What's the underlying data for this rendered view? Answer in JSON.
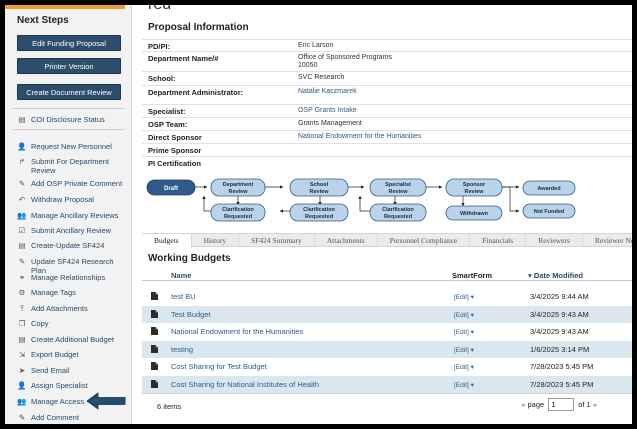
{
  "sidebar": {
    "title": "Next Steps",
    "buttons": [
      {
        "label": "Edit Funding Proposal"
      },
      {
        "label": "Printer Version"
      },
      {
        "label": "Create Document Review"
      }
    ],
    "coi": {
      "label": "COI Disclosure Status",
      "icon": "document-icon"
    },
    "items": [
      {
        "label": "Request New Personnel",
        "icon": "user-plus-icon"
      },
      {
        "label": "Submit For Department Review",
        "icon": "share-arrow-icon"
      },
      {
        "label": "Add OSP Private Comment",
        "icon": "comment-icon"
      },
      {
        "label": "Withdraw Proposal",
        "icon": "back-arrow-icon"
      },
      {
        "label": "Manage Ancillary Reviews",
        "icon": "group-icon"
      },
      {
        "label": "Submit Ancillary Review",
        "icon": "checkbox-icon"
      },
      {
        "label": "Create-Update SF424",
        "icon": "form-icon"
      },
      {
        "label": "Update SF424 Research Plan",
        "icon": "edit-icon"
      },
      {
        "label": "Manage Relationships",
        "icon": "link-icon"
      },
      {
        "label": "Manage Tags",
        "icon": "gear-icon"
      },
      {
        "label": "Add Attachments",
        "icon": "upload-icon"
      },
      {
        "label": "Copy",
        "icon": "copy-icon"
      },
      {
        "label": "Create Additional Budget",
        "icon": "form-icon"
      },
      {
        "label": "Export Budget",
        "icon": "export-icon"
      },
      {
        "label": "Send Email",
        "icon": "send-icon"
      },
      {
        "label": "Assign Specialist",
        "icon": "user-plus-icon"
      },
      {
        "label": "Manage Access",
        "icon": "group-icon"
      },
      {
        "label": "Add Comment",
        "icon": "comment-icon"
      }
    ]
  },
  "header": {
    "cut_title": "red"
  },
  "proposal": {
    "title": "Proposal Information",
    "fields": [
      {
        "label": "PD/PI:",
        "value": "Eric Larson",
        "link": false
      },
      {
        "label": "Department Name/#",
        "value": "Office of Sponsored Programs",
        "value2": "10050",
        "link": false
      },
      {
        "label": "School:",
        "value": "SVC Research",
        "link": false
      },
      {
        "label": "Department Administrator:",
        "value": "Natalie Kaczmarek",
        "link": true
      },
      {
        "label": "Specialist:",
        "value": "OSP Grants Intake",
        "link": true
      },
      {
        "label": "OSP Team:",
        "value": "Grants Management",
        "link": false
      },
      {
        "label": "Direct Sponsor",
        "value": "National Endowment for the Humanities",
        "link": true
      },
      {
        "label": "Prime Sponsor",
        "value": "",
        "link": false
      },
      {
        "label": "PI Certification",
        "value": "",
        "link": false
      }
    ]
  },
  "workflow": {
    "states": {
      "draft": "Draft",
      "dept_review": [
        "Department",
        "Review"
      ],
      "clar1": [
        "Clarification",
        "Requested"
      ],
      "school_review": [
        "School",
        "Review"
      ],
      "clar2": [
        "Clarification",
        "Requested"
      ],
      "spec_review": [
        "Specialist",
        "Review"
      ],
      "clar3": [
        "Clarification",
        "Requested"
      ],
      "sponsor_review": [
        "Sponsor",
        "Review"
      ],
      "withdrawn": "Withdrawn",
      "awarded": "Awarded",
      "not_funded": "Not Funded"
    },
    "colors": {
      "active": "#2e5b8a",
      "node": "#b9d3ea",
      "node_border": "#3a5a7a"
    }
  },
  "tabs": [
    "Budgets",
    "History",
    "SF424 Summary",
    "Attachments",
    "Personnel Compliance",
    "Financials",
    "Reviewers",
    "Reviewer Notes"
  ],
  "budgets": {
    "title": "Working Budgets",
    "col_name": "Name",
    "col_smartform": "SmartForm",
    "col_date": "▾ Date Modified",
    "edit_label": "[Edit] ▾",
    "rows": [
      {
        "name": "test BU",
        "date": "3/4/2025 9:44 AM"
      },
      {
        "name": "Test Budget",
        "date": "3/4/2025 9:43 AM"
      },
      {
        "name": "National Endowment for the Humanities",
        "date": "3/4/2025 9:43 AM"
      },
      {
        "name": "testing",
        "date": "1/6/2025 3:14 PM"
      },
      {
        "name": "Cost Sharing for Test Budget",
        "date": "7/28/2023 5:45 PM"
      },
      {
        "name": "Cost Sharing for National Institutes of Health",
        "date": "7/28/2023 5:45 PM"
      }
    ],
    "items_count": "6 items",
    "pager": {
      "prev": "◂",
      "label": "page",
      "current": "1",
      "of": "of 1",
      "next": "▸"
    }
  }
}
